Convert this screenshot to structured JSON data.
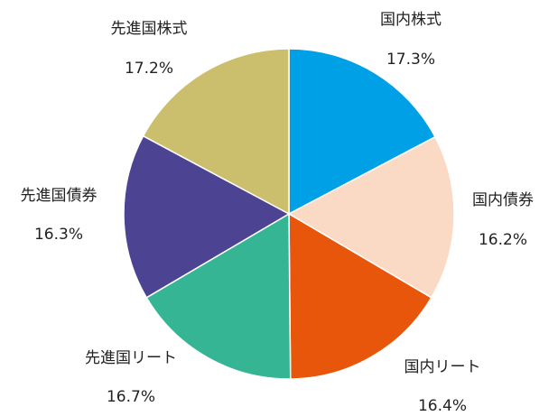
{
  "chart_data": {
    "type": "pie",
    "categories": [
      "国内株式",
      "国内債券",
      "国内リート",
      "先進国リート",
      "先進国債券",
      "先進国株式"
    ],
    "values": [
      17.3,
      16.2,
      16.4,
      16.7,
      16.3,
      17.2
    ],
    "value_labels": [
      "17.3%",
      "16.2%",
      "16.4%",
      "16.7%",
      "16.3%",
      "17.2%"
    ],
    "colors": [
      "#00a0e6",
      "#fad9c5",
      "#e8560b",
      "#36b595",
      "#4c4393",
      "#cbbe6c"
    ]
  }
}
